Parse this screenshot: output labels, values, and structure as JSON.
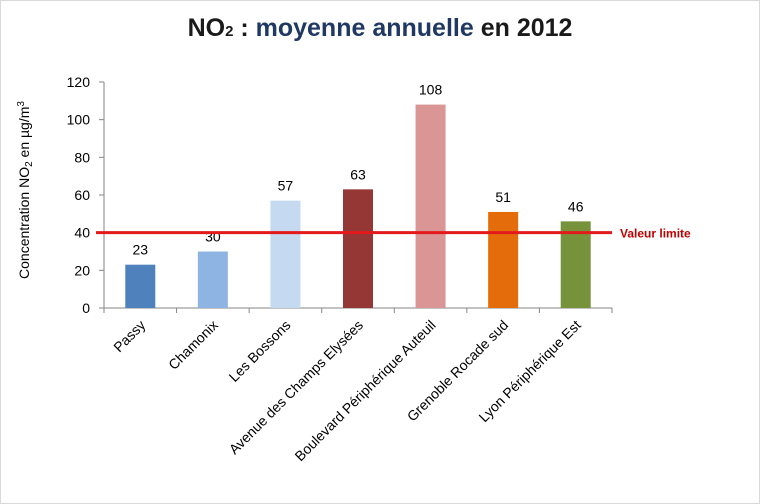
{
  "title": {
    "part1": "NO",
    "sub": "2",
    "part2": " : ",
    "highlight": "moyenne annuelle",
    "part3": " en 2012"
  },
  "chart_data": {
    "type": "bar",
    "categories": [
      "Passy",
      "Chamonix",
      "Les Bossons",
      "Avenue des Champs Elysées",
      "Boulevard Périphérique Auteuil",
      "Grenoble Rocade sud",
      "Lyon Périphérique Est"
    ],
    "values": [
      23,
      30,
      57,
      63,
      108,
      51,
      46
    ],
    "colors": [
      "#4f81bd",
      "#8db4e2",
      "#c5d9f1",
      "#953735",
      "#da9694",
      "#e46c0a",
      "#76933c"
    ],
    "ylabel": {
      "part1": "Concentration  NO",
      "sub": "2",
      "part2": " en µg/m",
      "sup": "3"
    },
    "ylim": [
      0,
      120
    ],
    "yticks": [
      0,
      20,
      40,
      60,
      80,
      100,
      120
    ],
    "grid": false,
    "reference_line": {
      "value": 40,
      "label": "Valeur limite",
      "color": "#e31a1c"
    }
  }
}
